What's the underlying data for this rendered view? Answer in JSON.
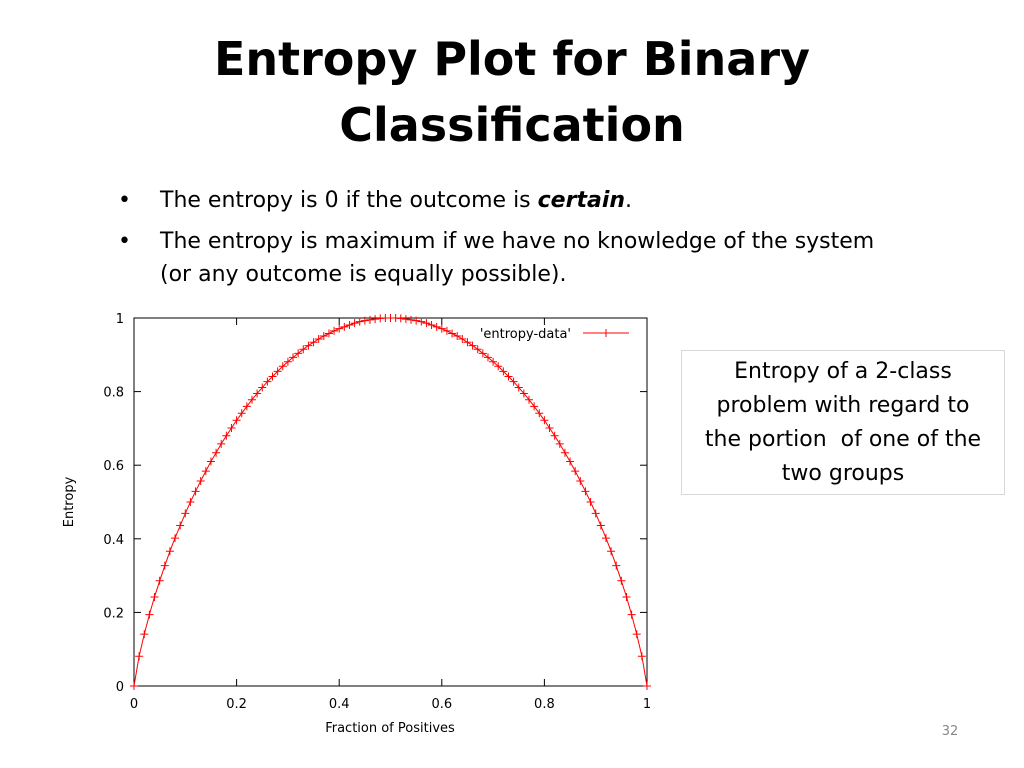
{
  "slide": {
    "title_lines": [
      "Entropy Plot for Binary",
      "Classification"
    ],
    "bullets": [
      {
        "marker": "•",
        "before": "The entropy is 0 if the outcome is ",
        "emphasis": "certain",
        "after": "."
      },
      {
        "marker": "•",
        "lines": [
          "The entropy is maximum if we have no knowledge of the system",
          "(or any outcome is equally possible)."
        ]
      }
    ],
    "callout_lines": [
      "Entropy of a 2-class",
      "problem with regard to",
      "the portion  of one of the",
      "two groups"
    ],
    "page_number": "32"
  },
  "chart_data": {
    "type": "line",
    "xlabel": "Fraction of Positives",
    "ylabel": "Entropy",
    "xlim": [
      0,
      1
    ],
    "ylim": [
      0,
      1
    ],
    "x_ticks": [
      "0",
      "0.2",
      "0.4",
      "0.6",
      "0.8",
      "1"
    ],
    "y_ticks": [
      "0",
      "0.2",
      "0.4",
      "0.6",
      "0.8",
      "1"
    ],
    "grid": false,
    "legend_position": "top-right",
    "series": [
      {
        "name": "'entropy-data'",
        "color": "#ff0000",
        "marker": "plus",
        "x": [
          0.0,
          0.01,
          0.02,
          0.03,
          0.04,
          0.05,
          0.06,
          0.07,
          0.08,
          0.09,
          0.1,
          0.11,
          0.12,
          0.13,
          0.14,
          0.15,
          0.16,
          0.17,
          0.18,
          0.19,
          0.2,
          0.21,
          0.22,
          0.23,
          0.24,
          0.25,
          0.26,
          0.27,
          0.28,
          0.29,
          0.3,
          0.31,
          0.32,
          0.33,
          0.34,
          0.35,
          0.36,
          0.37,
          0.38,
          0.39,
          0.4,
          0.41,
          0.42,
          0.43,
          0.44,
          0.45,
          0.46,
          0.47,
          0.48,
          0.49,
          0.5,
          0.51,
          0.52,
          0.53,
          0.54,
          0.55,
          0.56,
          0.57,
          0.58,
          0.59,
          0.6,
          0.61,
          0.62,
          0.63,
          0.64,
          0.65,
          0.66,
          0.67,
          0.68,
          0.69,
          0.7,
          0.71,
          0.72,
          0.73,
          0.74,
          0.75,
          0.76,
          0.77,
          0.78,
          0.79,
          0.8,
          0.81,
          0.82,
          0.83,
          0.84,
          0.85,
          0.86,
          0.87,
          0.88,
          0.89,
          0.9,
          0.91,
          0.92,
          0.93,
          0.94,
          0.95,
          0.96,
          0.97,
          0.98,
          0.99,
          1.0
        ],
        "y": [
          0.0,
          0.081,
          0.141,
          0.194,
          0.242,
          0.286,
          0.327,
          0.366,
          0.402,
          0.436,
          0.469,
          0.5,
          0.529,
          0.557,
          0.584,
          0.61,
          0.634,
          0.658,
          0.68,
          0.701,
          0.722,
          0.741,
          0.76,
          0.778,
          0.795,
          0.811,
          0.827,
          0.841,
          0.855,
          0.869,
          0.881,
          0.893,
          0.904,
          0.915,
          0.925,
          0.934,
          0.943,
          0.951,
          0.958,
          0.965,
          0.971,
          0.976,
          0.981,
          0.986,
          0.99,
          0.993,
          0.995,
          0.997,
          0.999,
          1.0,
          1.0,
          1.0,
          0.999,
          0.997,
          0.995,
          0.993,
          0.99,
          0.986,
          0.981,
          0.976,
          0.971,
          0.965,
          0.958,
          0.951,
          0.943,
          0.934,
          0.925,
          0.915,
          0.904,
          0.893,
          0.881,
          0.869,
          0.855,
          0.841,
          0.827,
          0.811,
          0.795,
          0.778,
          0.76,
          0.741,
          0.722,
          0.701,
          0.68,
          0.658,
          0.634,
          0.61,
          0.584,
          0.557,
          0.529,
          0.5,
          0.469,
          0.436,
          0.402,
          0.366,
          0.327,
          0.286,
          0.242,
          0.194,
          0.141,
          0.081,
          0.0
        ]
      }
    ]
  }
}
